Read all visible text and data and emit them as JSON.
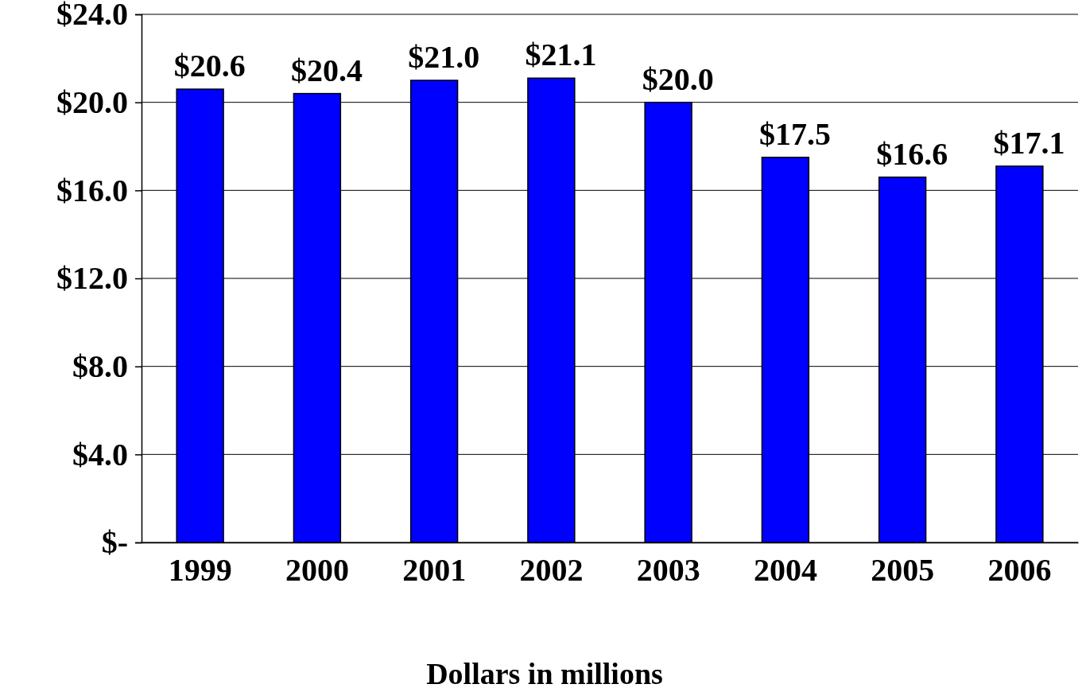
{
  "chart_data": {
    "type": "bar",
    "xlabel": "Dollars in millions",
    "categories": [
      "1999",
      "2000",
      "2001",
      "2002",
      "2003",
      "2004",
      "2005",
      "2006"
    ],
    "values": [
      20.6,
      20.4,
      21.0,
      21.1,
      20.0,
      17.5,
      16.6,
      17.1
    ],
    "value_labels": [
      "$20.6",
      "$20.4",
      "$21.0",
      "$21.1",
      "$20.0",
      "$17.5",
      "$16.6",
      "$17.1"
    ],
    "color": "#0000ff",
    "ylim": [
      0,
      24
    ],
    "yticks": [
      {
        "value": 0,
        "label": "$-"
      },
      {
        "value": 4,
        "label": "$4.0"
      },
      {
        "value": 8,
        "label": "$8.0"
      },
      {
        "value": 12,
        "label": "$12.0"
      },
      {
        "value": 16,
        "label": "$16.0"
      },
      {
        "value": 20,
        "label": "$20.0"
      },
      {
        "value": 24,
        "label": "$24.0"
      }
    ],
    "grid": "y"
  }
}
